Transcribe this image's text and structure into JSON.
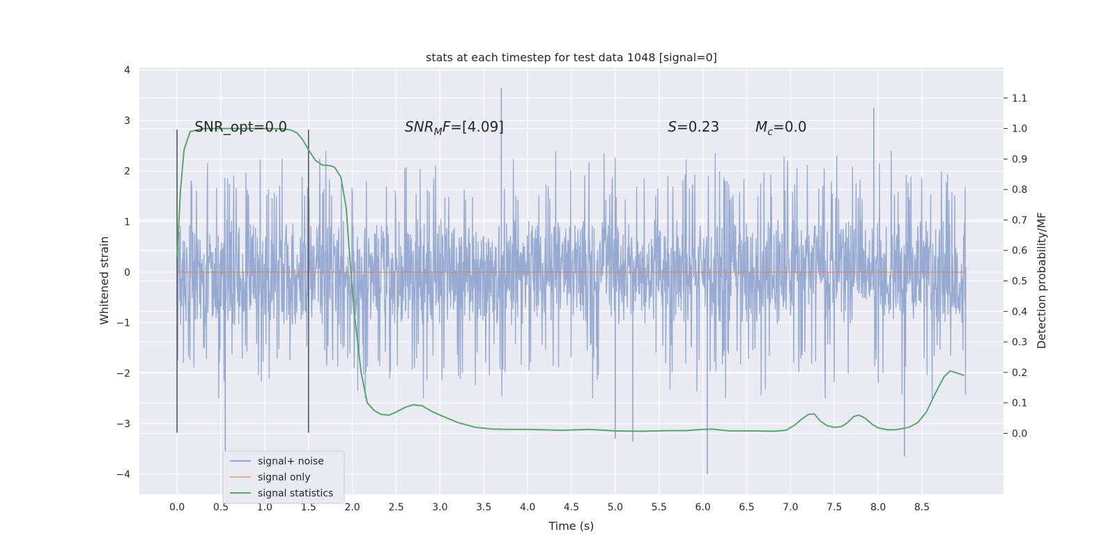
{
  "chart_data": {
    "type": "line",
    "title": "stats at each timestep for test data 1048 [signal=0]",
    "xlabel": "Time (s)",
    "ylabel": "Whitened strain",
    "y2label": "Detection probability/MF",
    "xlim": [
      -0.43,
      9.43
    ],
    "ylim": [
      -4.4,
      4.05
    ],
    "y2lim": [
      -0.2,
      1.2
    ],
    "x_ticks": [
      0.0,
      0.5,
      1.0,
      1.5,
      2.0,
      2.5,
      3.0,
      3.5,
      4.0,
      4.5,
      5.0,
      5.5,
      6.0,
      6.5,
      7.0,
      7.5,
      8.0,
      8.5
    ],
    "x_tick_labels": [
      "0.0",
      "0.5",
      "1.0",
      "1.5",
      "2.0",
      "2.5",
      "3.0",
      "3.5",
      "4.0",
      "4.5",
      "5.0",
      "5.5",
      "6.0",
      "6.5",
      "7.0",
      "7.5",
      "8.0",
      "8.5"
    ],
    "y_ticks": [
      -4,
      -3,
      -2,
      -1,
      0,
      1,
      2,
      3,
      4
    ],
    "y_tick_labels": [
      "−4",
      "−3",
      "−2",
      "−1",
      "0",
      "1",
      "2",
      "3",
      "4"
    ],
    "y2_ticks": [
      0.0,
      0.1,
      0.2,
      0.3,
      0.4,
      0.5,
      0.6,
      0.7,
      0.8,
      0.9,
      1.0,
      1.1
    ],
    "y2_tick_labels": [
      "0.0",
      "0.1",
      "0.2",
      "0.3",
      "0.4",
      "0.5",
      "0.6",
      "0.7",
      "0.8",
      "0.9",
      "1.0",
      "1.1"
    ],
    "grid": true,
    "legend_position": "lower-left",
    "annotations": [
      {
        "text": "SNR_opt=0.0",
        "x": 0.2,
        "y": 2.88
      },
      {
        "text_italic": "SNR",
        "sub": "M",
        "text_italic2": "F",
        "text_rest": "=[4.09]",
        "x": 2.6,
        "y": 2.88
      },
      {
        "text_italic": "S",
        "text_rest": "=0.23",
        "x": 5.6,
        "y": 2.88
      },
      {
        "text_italic": "M",
        "sub": "c",
        "text_rest": "=0.0",
        "x": 6.6,
        "y": 2.88
      }
    ],
    "vlines": [
      {
        "x": 0.0,
        "ymin": -3.18,
        "ymax": 2.82,
        "color": "#555555"
      },
      {
        "x": 1.5,
        "ymin": -3.18,
        "ymax": 2.82,
        "color": "#555555"
      }
    ],
    "series": [
      {
        "name": "signal+ noise",
        "color": "#8ea3ce",
        "axis": "left",
        "kind": "noise",
        "x_start": 0.0,
        "x_end": 9.0,
        "envelope_upper": 2.0,
        "envelope_lower": -2.0,
        "spikes": [
          {
            "x": 0.55,
            "y": -3.55
          },
          {
            "x": 3.7,
            "y": 3.65
          },
          {
            "x": 6.05,
            "y": -4.0
          },
          {
            "x": 7.95,
            "y": 3.25
          },
          {
            "x": 8.3,
            "y": -3.65
          },
          {
            "x": 5.2,
            "y": -3.35
          },
          {
            "x": 5.0,
            "y": -3.3
          }
        ]
      },
      {
        "name": "signal only",
        "color": "#dd8452",
        "axis": "left",
        "x": [
          0.0,
          9.0
        ],
        "y": [
          0.0,
          0.0
        ]
      },
      {
        "name": "signal statistics",
        "color": "#55a868",
        "axis": "right",
        "x": [
          0.0,
          0.04,
          0.08,
          0.15,
          0.3,
          0.5,
          0.8,
          1.0,
          1.2,
          1.3,
          1.37,
          1.43,
          1.5,
          1.58,
          1.66,
          1.75,
          1.8,
          1.87,
          1.93,
          1.97,
          2.02,
          2.1,
          2.17,
          2.25,
          2.33,
          2.42,
          2.5,
          2.6,
          2.7,
          2.8,
          2.9,
          3.0,
          3.2,
          3.4,
          3.6,
          3.8,
          4.0,
          4.4,
          4.7,
          5.0,
          5.3,
          5.6,
          5.8,
          6.0,
          6.1,
          6.3,
          6.6,
          6.8,
          6.95,
          7.05,
          7.12,
          7.2,
          7.27,
          7.34,
          7.42,
          7.5,
          7.58,
          7.65,
          7.72,
          7.78,
          7.85,
          7.93,
          8.0,
          8.1,
          8.2,
          8.35,
          8.45,
          8.55,
          8.65,
          8.75,
          8.82,
          8.88,
          8.93,
          8.98
        ],
        "y": [
          0.58,
          0.8,
          0.93,
          0.99,
          1.0,
          1.0,
          1.0,
          1.0,
          0.999,
          0.995,
          0.985,
          0.965,
          0.93,
          0.895,
          0.88,
          0.878,
          0.872,
          0.84,
          0.74,
          0.58,
          0.4,
          0.2,
          0.1,
          0.075,
          0.062,
          0.06,
          0.07,
          0.085,
          0.094,
          0.09,
          0.073,
          0.06,
          0.036,
          0.02,
          0.014,
          0.013,
          0.013,
          0.01,
          0.013,
          0.008,
          0.007,
          0.009,
          0.009,
          0.013,
          0.014,
          0.008,
          0.008,
          0.007,
          0.01,
          0.028,
          0.045,
          0.062,
          0.064,
          0.04,
          0.025,
          0.02,
          0.022,
          0.035,
          0.055,
          0.06,
          0.05,
          0.03,
          0.018,
          0.012,
          0.012,
          0.02,
          0.035,
          0.07,
          0.13,
          0.185,
          0.205,
          0.2,
          0.195,
          0.19
        ]
      }
    ]
  }
}
